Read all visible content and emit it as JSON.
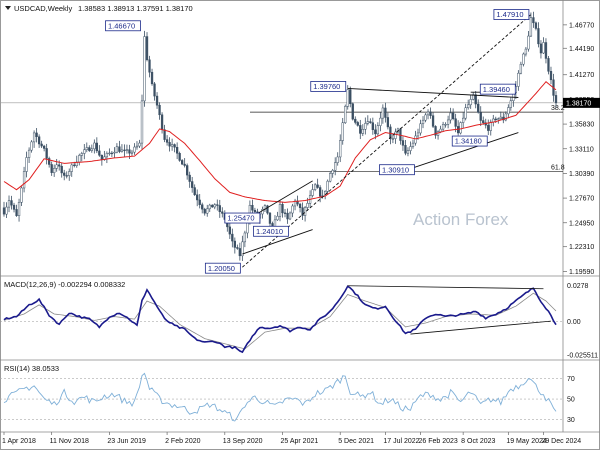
{
  "header": {
    "symbol": "USDCAD,Weekly",
    "ohlc": "1.38583 1.38913 1.37591 1.38170"
  },
  "watermark": "Action Forex",
  "colors": {
    "candle": "#3b4f63",
    "ma": "#e02020",
    "trendline": "#111111",
    "label": "#1c2a8a",
    "macd": "#1a1a8c",
    "signal": "#8a8a8a",
    "rsi": "#7fb0d8"
  },
  "chart_data": [
    {
      "type": "candlestick",
      "pane": "price",
      "ylim": [
        1.193,
        1.4885
      ],
      "y_ticks": [
        "1.46770",
        "1.44190",
        "1.41270",
        "1.38550",
        "1.35830",
        "1.33110",
        "1.30390",
        "1.27670",
        "1.24950",
        "1.22310",
        "1.19590"
      ],
      "last_price": "1.38170",
      "price_anchors": [
        [
          0,
          1.262
        ],
        [
          2,
          1.275
        ],
        [
          5,
          1.256
        ],
        [
          7,
          1.286
        ],
        [
          9,
          1.321
        ],
        [
          12,
          1.349
        ],
        [
          16,
          1.329
        ],
        [
          19,
          1.306
        ],
        [
          21,
          1.315
        ],
        [
          24,
          1.299
        ],
        [
          27,
          1.311
        ],
        [
          30,
          1.323
        ],
        [
          33,
          1.33
        ],
        [
          36,
          1.336
        ],
        [
          39,
          1.319
        ],
        [
          42,
          1.326
        ],
        [
          45,
          1.332
        ],
        [
          48,
          1.327
        ],
        [
          51,
          1.328
        ],
        [
          54,
          1.336
        ],
        [
          55,
          1.385
        ],
        [
          56,
          1.454
        ],
        [
          57,
          1.431
        ],
        [
          59,
          1.4
        ],
        [
          61,
          1.379
        ],
        [
          64,
          1.343
        ],
        [
          68,
          1.33
        ],
        [
          72,
          1.312
        ],
        [
          76,
          1.281
        ],
        [
          80,
          1.262
        ],
        [
          84,
          1.27
        ],
        [
          88,
          1.254
        ],
        [
          91,
          1.227
        ],
        [
          94,
          1.214
        ],
        [
          96,
          1.24
        ],
        [
          98,
          1.268
        ],
        [
          101,
          1.255
        ],
        [
          104,
          1.266
        ],
        [
          107,
          1.241
        ],
        [
          110,
          1.268
        ],
        [
          113,
          1.252
        ],
        [
          116,
          1.275
        ],
        [
          119,
          1.258
        ],
        [
          121,
          1.271
        ],
        [
          124,
          1.29
        ],
        [
          127,
          1.277
        ],
        [
          130,
          1.304
        ],
        [
          133,
          1.322
        ],
        [
          135,
          1.357
        ],
        [
          137,
          1.395
        ],
        [
          139,
          1.366
        ],
        [
          142,
          1.351
        ],
        [
          145,
          1.364
        ],
        [
          148,
          1.349
        ],
        [
          151,
          1.375
        ],
        [
          154,
          1.341
        ],
        [
          157,
          1.351
        ],
        [
          160,
          1.324
        ],
        [
          163,
          1.338
        ],
        [
          166,
          1.356
        ],
        [
          169,
          1.374
        ],
        [
          172,
          1.348
        ],
        [
          175,
          1.356
        ],
        [
          178,
          1.369
        ],
        [
          181,
          1.348
        ],
        [
          184,
          1.375
        ],
        [
          187,
          1.388
        ],
        [
          190,
          1.361
        ],
        [
          193,
          1.354
        ],
        [
          196,
          1.365
        ],
        [
          199,
          1.364
        ],
        [
          202,
          1.384
        ],
        [
          204,
          1.4
        ],
        [
          206,
          1.427
        ],
        [
          208,
          1.44
        ],
        [
          210,
          1.475
        ],
        [
          212,
          1.461
        ],
        [
          214,
          1.438
        ],
        [
          215,
          1.447
        ],
        [
          217,
          1.419
        ],
        [
          219,
          1.392
        ],
        [
          220,
          1.3817
        ]
      ],
      "moving_average_anchors": [
        [
          0,
          1.295
        ],
        [
          5,
          1.286
        ],
        [
          10,
          1.297
        ],
        [
          16,
          1.32
        ],
        [
          24,
          1.315
        ],
        [
          34,
          1.317
        ],
        [
          44,
          1.321
        ],
        [
          52,
          1.323
        ],
        [
          58,
          1.337
        ],
        [
          62,
          1.353
        ],
        [
          66,
          1.35
        ],
        [
          72,
          1.337
        ],
        [
          78,
          1.318
        ],
        [
          84,
          1.298
        ],
        [
          90,
          1.283
        ],
        [
          96,
          1.278
        ],
        [
          104,
          1.274
        ],
        [
          112,
          1.272
        ],
        [
          120,
          1.274
        ],
        [
          128,
          1.279
        ],
        [
          134,
          1.29
        ],
        [
          140,
          1.321
        ],
        [
          146,
          1.341
        ],
        [
          152,
          1.349
        ],
        [
          158,
          1.346
        ],
        [
          164,
          1.342
        ],
        [
          170,
          1.346
        ],
        [
          176,
          1.351
        ],
        [
          182,
          1.353
        ],
        [
          188,
          1.357
        ],
        [
          196,
          1.361
        ],
        [
          204,
          1.368
        ],
        [
          212,
          1.392
        ],
        [
          216,
          1.405
        ],
        [
          220,
          1.396
        ]
      ],
      "annotations": [
        {
          "text": "1.46670",
          "bar": 56,
          "price": 1.4667
        },
        {
          "text": "1.20050",
          "bar": 95,
          "price": 1.2005
        },
        {
          "text": "1.25470",
          "bar": 98,
          "price": 1.2547
        },
        {
          "text": "1.24010",
          "bar": 107,
          "price": 1.2401
        },
        {
          "text": "1.39760",
          "bar": 137,
          "price": 1.3976
        },
        {
          "text": "1.30910",
          "bar": 162,
          "price": 1.3091
        },
        {
          "text": "1.34180",
          "bar": 191,
          "price": 1.3418
        },
        {
          "text": "1.39460",
          "bar": 196,
          "price": 1.3946
        },
        {
          "text": "1.47910",
          "bar": 210,
          "price": 1.4791
        }
      ],
      "fib_labels": [
        "38.2",
        "61.8"
      ],
      "fib_levels": [
        1.3715,
        1.3058
      ]
    },
    {
      "type": "line",
      "pane": "macd",
      "title": "MACD(12,26,9) -0.002294 0.008332",
      "ylim": [
        -0.028,
        0.033
      ],
      "y_ticks": [
        "0.0278",
        "0.00",
        "-0.025511"
      ],
      "series": [
        {
          "name": "macd",
          "anchors": [
            [
              0,
              0.002
            ],
            [
              5,
              0.004
            ],
            [
              10,
              0.013
            ],
            [
              14,
              0.017
            ],
            [
              18,
              0.005
            ],
            [
              22,
              -0.002
            ],
            [
              26,
              0.007
            ],
            [
              30,
              0.004
            ],
            [
              34,
              0.002
            ],
            [
              38,
              -0.004
            ],
            [
              42,
              0.004
            ],
            [
              46,
              0.007
            ],
            [
              50,
              0.002
            ],
            [
              53,
              -0.003
            ],
            [
              55,
              0.016
            ],
            [
              57,
              0.025
            ],
            [
              60,
              0.015
            ],
            [
              64,
              0.002
            ],
            [
              68,
              -0.003
            ],
            [
              72,
              -0.006
            ],
            [
              76,
              -0.013
            ],
            [
              80,
              -0.016
            ],
            [
              84,
              -0.015
            ],
            [
              88,
              -0.019
            ],
            [
              92,
              -0.02
            ],
            [
              95,
              -0.024
            ],
            [
              98,
              -0.014
            ],
            [
              102,
              -0.004
            ],
            [
              106,
              -0.005
            ],
            [
              110,
              -0.003
            ],
            [
              114,
              -0.007
            ],
            [
              118,
              -0.004
            ],
            [
              122,
              -0.006
            ],
            [
              126,
              0.002
            ],
            [
              130,
              0.008
            ],
            [
              134,
              0.018
            ],
            [
              137,
              0.0278
            ],
            [
              140,
              0.022
            ],
            [
              144,
              0.013
            ],
            [
              148,
              0.01
            ],
            [
              152,
              0.012
            ],
            [
              156,
              0.001
            ],
            [
              160,
              -0.009
            ],
            [
              164,
              -0.006
            ],
            [
              168,
              0.003
            ],
            [
              172,
              0.006
            ],
            [
              176,
              0.004
            ],
            [
              180,
              0.005
            ],
            [
              184,
              0.006
            ],
            [
              188,
              0.008
            ],
            [
              192,
              0.003
            ],
            [
              196,
              0.006
            ],
            [
              200,
              0.01
            ],
            [
              204,
              0.016
            ],
            [
              208,
              0.022
            ],
            [
              211,
              0.026
            ],
            [
              214,
              0.016
            ],
            [
              217,
              0.008
            ],
            [
              220,
              -0.002294
            ]
          ]
        },
        {
          "name": "signal",
          "anchors": [
            [
              0,
              0.001
            ],
            [
              8,
              0.006
            ],
            [
              14,
              0.013
            ],
            [
              20,
              0.006
            ],
            [
              28,
              0.004
            ],
            [
              36,
              0.001
            ],
            [
              44,
              0.004
            ],
            [
              52,
              0.002
            ],
            [
              57,
              0.016
            ],
            [
              62,
              0.012
            ],
            [
              70,
              -0.002
            ],
            [
              80,
              -0.013
            ],
            [
              90,
              -0.018
            ],
            [
              96,
              -0.021
            ],
            [
              104,
              -0.008
            ],
            [
              112,
              -0.005
            ],
            [
              122,
              -0.005
            ],
            [
              130,
              0.004
            ],
            [
              137,
              0.021
            ],
            [
              144,
              0.016
            ],
            [
              152,
              0.011
            ],
            [
              160,
              -0.004
            ],
            [
              168,
              -0.001
            ],
            [
              176,
              0.004
            ],
            [
              186,
              0.006
            ],
            [
              196,
              0.005
            ],
            [
              204,
              0.012
            ],
            [
              211,
              0.022
            ],
            [
              216,
              0.016
            ],
            [
              220,
              0.008332
            ]
          ]
        }
      ]
    },
    {
      "type": "line",
      "pane": "rsi",
      "title": "RSI(14) 38.0533",
      "ylim": [
        20,
        85
      ],
      "y_ticks": [
        "70",
        "50",
        "30"
      ],
      "series": [
        {
          "name": "rsi",
          "anchors": [
            [
              0,
              50
            ],
            [
              4,
              54
            ],
            [
              8,
              60
            ],
            [
              12,
              63
            ],
            [
              16,
              50
            ],
            [
              20,
              45
            ],
            [
              24,
              56
            ],
            [
              28,
              48
            ],
            [
              32,
              52
            ],
            [
              36,
              47
            ],
            [
              40,
              53
            ],
            [
              44,
              55
            ],
            [
              48,
              48
            ],
            [
              52,
              46
            ],
            [
              55,
              72
            ],
            [
              56,
              76
            ],
            [
              58,
              60
            ],
            [
              62,
              50
            ],
            [
              66,
              45
            ],
            [
              70,
              43
            ],
            [
              74,
              38
            ],
            [
              78,
              40
            ],
            [
              82,
              45
            ],
            [
              86,
              40
            ],
            [
              90,
              34
            ],
            [
              93,
              30
            ],
            [
              96,
              45
            ],
            [
              100,
              52
            ],
            [
              104,
              47
            ],
            [
              108,
              42
            ],
            [
              112,
              49
            ],
            [
              116,
              50
            ],
            [
              120,
              45
            ],
            [
              124,
              55
            ],
            [
              128,
              58
            ],
            [
              132,
              65
            ],
            [
              136,
              73
            ],
            [
              138,
              58
            ],
            [
              142,
              52
            ],
            [
              146,
              57
            ],
            [
              150,
              45
            ],
            [
              154,
              50
            ],
            [
              158,
              42
            ],
            [
              162,
              40
            ],
            [
              166,
              53
            ],
            [
              170,
              55
            ],
            [
              174,
              49
            ],
            [
              178,
              56
            ],
            [
              182,
              47
            ],
            [
              186,
              57
            ],
            [
              190,
              44
            ],
            [
              194,
              50
            ],
            [
              198,
              47
            ],
            [
              202,
              60
            ],
            [
              206,
              64
            ],
            [
              209,
              72
            ],
            [
              212,
              62
            ],
            [
              215,
              55
            ],
            [
              218,
              44
            ],
            [
              220,
              38.0533
            ]
          ]
        }
      ]
    }
  ],
  "x_axis_labels": [
    {
      "text": "1 Apr 2018",
      "bar": 0
    },
    {
      "text": "11 Nov 2018",
      "bar": 19
    },
    {
      "text": "23 Jun 2019",
      "bar": 42
    },
    {
      "text": "2 Feb 2020",
      "bar": 65
    },
    {
      "text": "13 Sep 2020",
      "bar": 88
    },
    {
      "text": "25 Apr 2021",
      "bar": 111
    },
    {
      "text": "5 Dec 2021",
      "bar": 134
    },
    {
      "text": "17 Jul 2022",
      "bar": 152
    },
    {
      "text": "26 Feb 2023",
      "bar": 166
    },
    {
      "text": "8 Oct 2023",
      "bar": 183
    },
    {
      "text": "19 May 2024",
      "bar": 201
    },
    {
      "text": "29 Dec 2024",
      "bar": 215
    }
  ]
}
